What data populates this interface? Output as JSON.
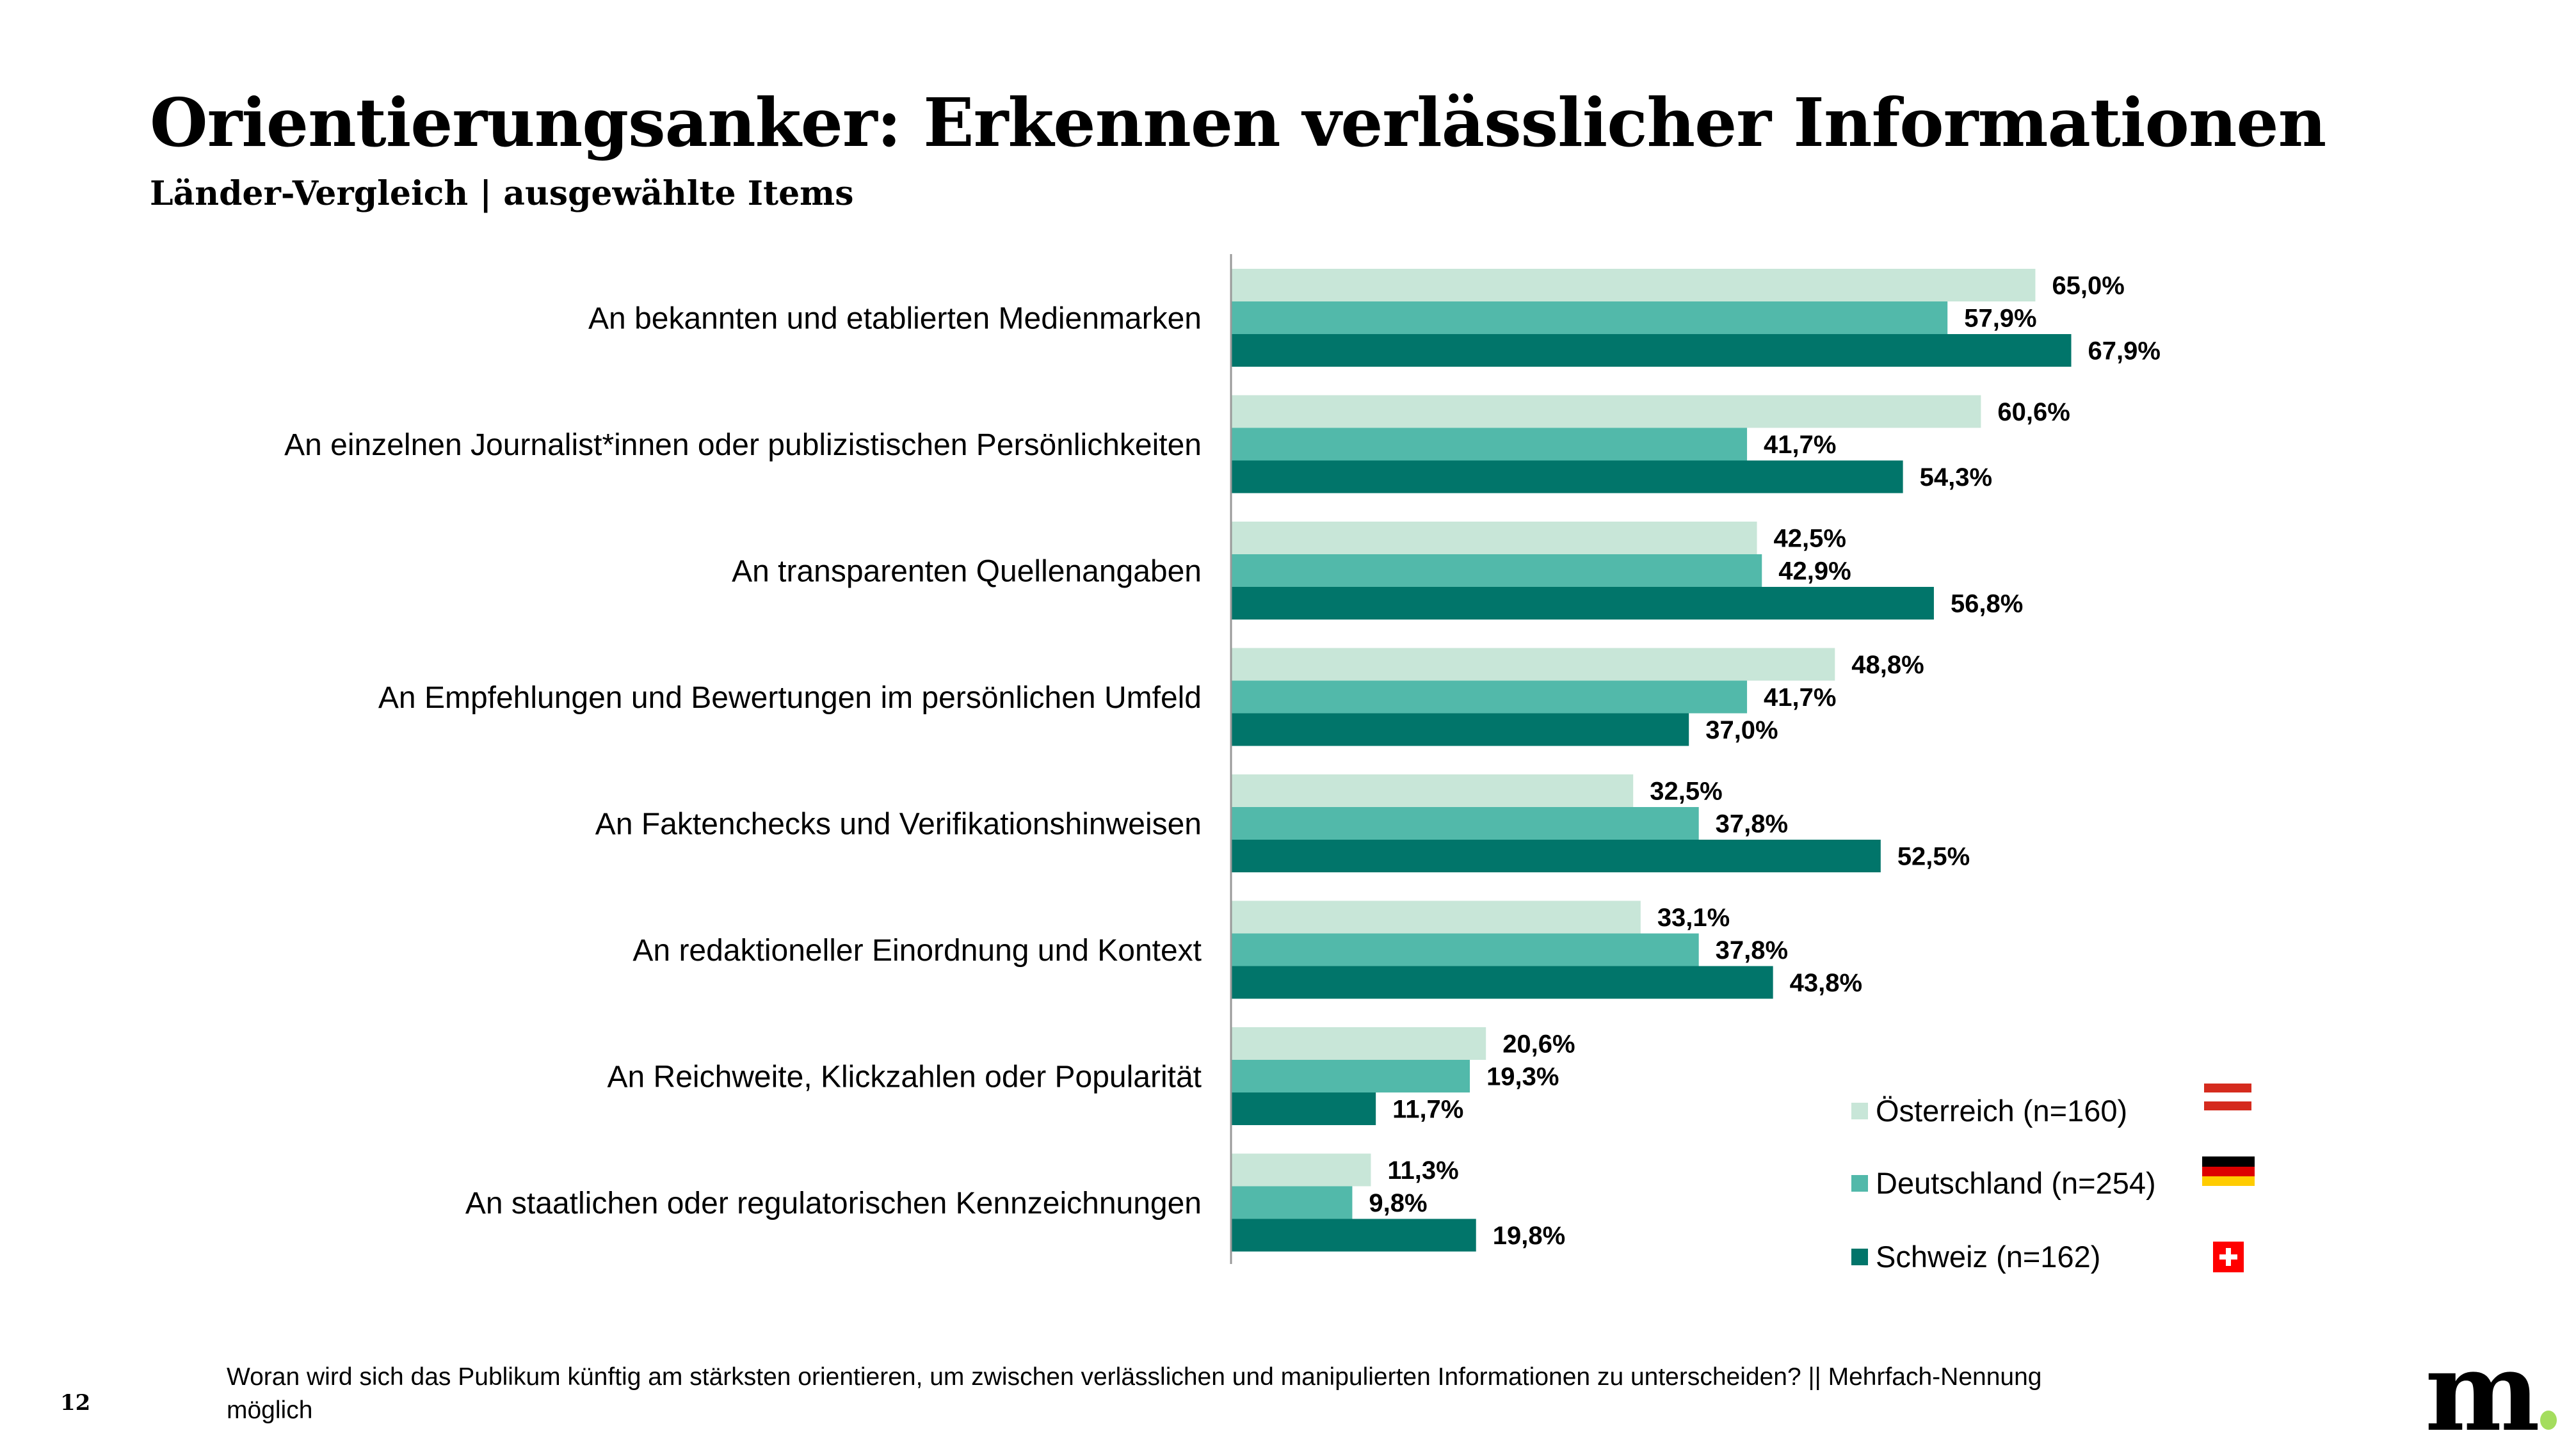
{
  "header": {
    "title": "Orientierungsanker: Erkennen verlässlicher Informationen",
    "subtitle": "Länder-Vergleich | ausgewählte Items"
  },
  "chart_data": {
    "type": "bar",
    "orientation": "horizontal",
    "categories": [
      "An bekannten und etablierten Medienmarken",
      "An einzelnen Journalist*innen oder publizistischen Persönlichkeiten",
      "An transparenten Quellenangaben",
      "An Empfehlungen und Bewertungen im persönlichen Umfeld",
      "An Faktenchecks und Verifikationshinweisen",
      "An redaktioneller Einordnung und Kontext",
      "An Reichweite, Klickzahlen oder Popularität",
      "An staatlichen oder regulatorischen Kennzeichnungen"
    ],
    "series": [
      {
        "name": "Österreich (n=160)",
        "color": "#c8e6d8",
        "values": [
          65.0,
          60.6,
          42.5,
          48.8,
          32.5,
          33.1,
          20.6,
          11.3
        ],
        "labels": [
          "65,0%",
          "60,6%",
          "42,5%",
          "48,8%",
          "32,5%",
          "33,1%",
          "20,6%",
          "11,3%"
        ]
      },
      {
        "name": "Deutschland (n=254)",
        "color": "#52b9aa",
        "values": [
          57.9,
          41.7,
          42.9,
          41.7,
          37.8,
          37.8,
          19.3,
          9.8
        ],
        "labels": [
          "57,9%",
          "41,7%",
          "42,9%",
          "41,7%",
          "37,8%",
          "37,8%",
          "19,3%",
          "9,8%"
        ]
      },
      {
        "name": "Schweiz (n=162)",
        "color": "#01756a",
        "values": [
          67.9,
          54.3,
          56.8,
          37.0,
          52.5,
          43.8,
          11.7,
          19.8
        ],
        "labels": [
          "67,9%",
          "54,3%",
          "56,8%",
          "37,0%",
          "52,5%",
          "43,8%",
          "11,7%",
          "19,8%"
        ]
      }
    ],
    "unit": "%",
    "xlim": [
      0,
      100
    ],
    "grid": false,
    "legend_position": "bottom-right",
    "legend_icons": [
      "flag-austria-icon",
      "flag-germany-icon",
      "flag-switzerland-icon"
    ]
  },
  "footer": {
    "page_number": "12",
    "note": "Woran wird sich das Publikum künftig am stärksten orientieren, um zwischen verlässlichen und manipulierten Informationen zu unterscheiden? || Mehrfach-Nennung möglich",
    "logo_text": "m"
  }
}
